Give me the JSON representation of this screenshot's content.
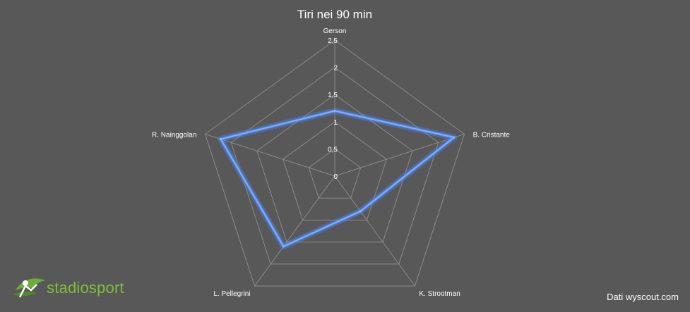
{
  "chart_data": {
    "type": "radar",
    "title": "Tiri nei 90 min",
    "categories": [
      "Gerson",
      "B. Cristante",
      "K. Strootman",
      "L. Pellegrini",
      "R. Nainggolan"
    ],
    "series": [
      {
        "values": [
          1.2,
          2.3,
          0.8,
          1.6,
          2.2
        ]
      }
    ],
    "rlim": [
      0,
      2.5
    ],
    "ticks": [
      "0",
      "0,5",
      "1",
      "1,5",
      "2",
      "2,5"
    ],
    "grid": true,
    "colors": {
      "series": "#5a96ff",
      "background": "#585858",
      "grid": "#8a8a8a"
    }
  },
  "footer": {
    "source": "Dati wyscout.com",
    "logo_text": "stadiosport"
  }
}
